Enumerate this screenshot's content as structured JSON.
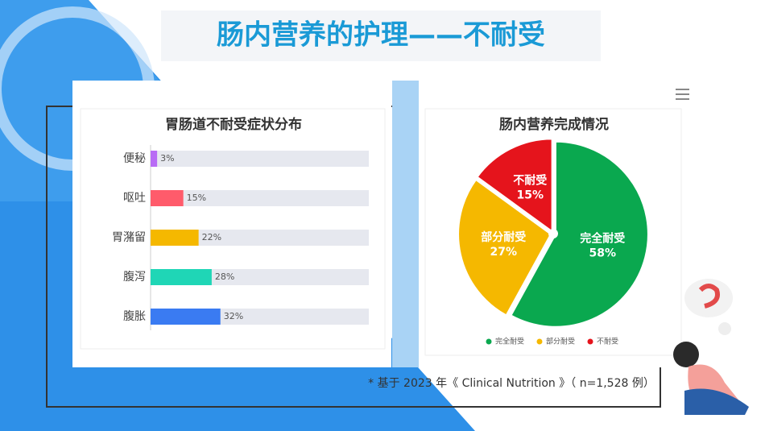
{
  "title": "肠内营养的护理——不耐受",
  "footnote": "* 基于 2023 年《 Clinical Nutrition 》（ n=1,528 例）",
  "chart_data": [
    {
      "type": "bar",
      "title": "胃肠道不耐受症状分布",
      "categories": [
        "便秘",
        "呕吐",
        "胃潴留",
        "腹泻",
        "腹胀"
      ],
      "values": [
        3,
        15,
        22,
        28,
        32
      ],
      "value_labels": [
        "3%",
        "15%",
        "22%",
        "28%",
        "32%"
      ],
      "colors": [
        "#b86cf5",
        "#ff5b6b",
        "#f5b800",
        "#1fd6b6",
        "#3a7bf2"
      ],
      "xlim": [
        0,
        100
      ]
    },
    {
      "type": "pie",
      "title": "肠内营养完成情况",
      "categories": [
        "完全耐受",
        "部分耐受",
        "不耐受"
      ],
      "values": [
        58,
        27,
        15
      ],
      "value_labels": [
        "58%",
        "27%",
        "15%"
      ],
      "colors": [
        "#0aa84f",
        "#f5b800",
        "#e5141c"
      ],
      "legend": "bottom"
    }
  ]
}
